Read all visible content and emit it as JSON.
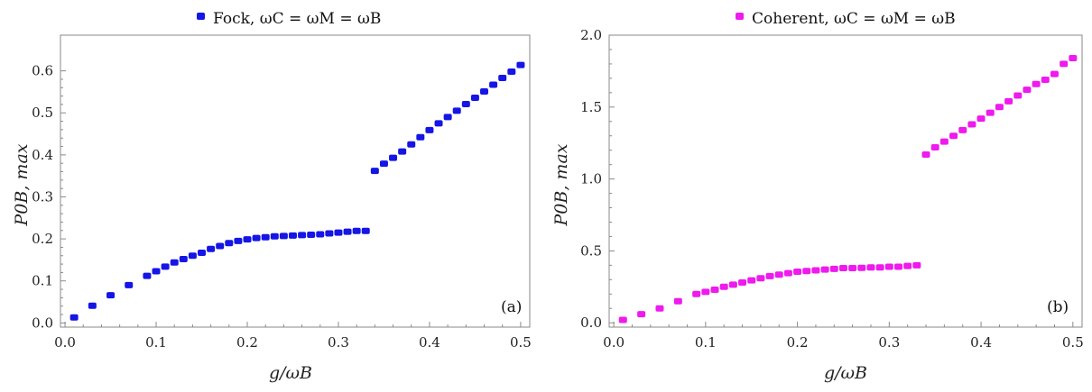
{
  "chart_data": [
    {
      "type": "scatter",
      "panel_label": "(a)",
      "title": "Fock,  ωC = ωM = ωB",
      "xlabel": "g/ωB",
      "ylabel": "P0B, max",
      "xlim": [
        -0.005,
        0.51
      ],
      "ylim": [
        -0.01,
        0.685
      ],
      "xticks": [
        0.0,
        0.1,
        0.2,
        0.3,
        0.4,
        0.5
      ],
      "xtick_labels": [
        "0.0",
        "0.1",
        "0.2",
        "0.3",
        "0.4",
        "0.5"
      ],
      "yticks": [
        0.0,
        0.1,
        0.2,
        0.3,
        0.4,
        0.5,
        0.6
      ],
      "ytick_labels": [
        "0.0",
        "0.1",
        "0.2",
        "0.3",
        "0.4",
        "0.5",
        "0.6"
      ],
      "marker_color": "#1515e6",
      "series": [
        {
          "name": "Fock",
          "x": [
            0.01,
            0.03,
            0.05,
            0.07,
            0.09,
            0.1,
            0.11,
            0.12,
            0.13,
            0.14,
            0.15,
            0.16,
            0.17,
            0.18,
            0.19,
            0.2,
            0.21,
            0.22,
            0.23,
            0.24,
            0.25,
            0.26,
            0.27,
            0.28,
            0.29,
            0.3,
            0.31,
            0.32,
            0.33,
            0.34,
            0.35,
            0.36,
            0.37,
            0.38,
            0.39,
            0.4,
            0.41,
            0.42,
            0.43,
            0.44,
            0.45,
            0.46,
            0.47,
            0.48,
            0.49,
            0.5
          ],
          "y": [
            0.013,
            0.041,
            0.066,
            0.09,
            0.112,
            0.123,
            0.134,
            0.144,
            0.152,
            0.16,
            0.167,
            0.176,
            0.183,
            0.19,
            0.195,
            0.199,
            0.202,
            0.204,
            0.206,
            0.207,
            0.208,
            0.209,
            0.21,
            0.211,
            0.213,
            0.215,
            0.217,
            0.219,
            0.219,
            0.362,
            0.379,
            0.393,
            0.408,
            0.425,
            0.442,
            0.459,
            0.475,
            0.49,
            0.505,
            0.521,
            0.536,
            0.551,
            0.567,
            0.583,
            0.598,
            0.614
          ]
        }
      ]
    },
    {
      "type": "scatter",
      "panel_label": "(b)",
      "title": "Coherent,  ωC = ωM = ωB",
      "xlabel": "g/ωB",
      "ylabel": "P0B, max",
      "xlim": [
        -0.005,
        0.51
      ],
      "ylim": [
        -0.03,
        2.0
      ],
      "xticks": [
        0.0,
        0.1,
        0.2,
        0.3,
        0.4,
        0.5
      ],
      "xtick_labels": [
        "0.0",
        "0.1",
        "0.2",
        "0.3",
        "0.4",
        "0.5"
      ],
      "yticks": [
        0.0,
        0.5,
        1.0,
        1.5,
        2.0
      ],
      "ytick_labels": [
        "0.0",
        "0.5",
        "1.0",
        "1.5",
        "2.0"
      ],
      "marker_color": "#ee1aee",
      "series": [
        {
          "name": "Coherent",
          "x": [
            0.01,
            0.03,
            0.05,
            0.07,
            0.09,
            0.1,
            0.11,
            0.12,
            0.13,
            0.14,
            0.15,
            0.16,
            0.17,
            0.18,
            0.19,
            0.2,
            0.21,
            0.22,
            0.23,
            0.24,
            0.25,
            0.26,
            0.27,
            0.28,
            0.29,
            0.3,
            0.31,
            0.32,
            0.33,
            0.34,
            0.35,
            0.36,
            0.37,
            0.38,
            0.39,
            0.4,
            0.41,
            0.42,
            0.43,
            0.44,
            0.45,
            0.46,
            0.47,
            0.48,
            0.49,
            0.5
          ],
          "y": [
            0.02,
            0.06,
            0.1,
            0.15,
            0.2,
            0.215,
            0.23,
            0.25,
            0.265,
            0.28,
            0.295,
            0.31,
            0.325,
            0.335,
            0.345,
            0.355,
            0.36,
            0.365,
            0.37,
            0.375,
            0.38,
            0.38,
            0.382,
            0.385,
            0.385,
            0.39,
            0.39,
            0.395,
            0.4,
            1.17,
            1.22,
            1.26,
            1.3,
            1.34,
            1.38,
            1.42,
            1.46,
            1.5,
            1.54,
            1.58,
            1.62,
            1.66,
            1.69,
            1.73,
            1.8,
            1.84
          ]
        }
      ]
    }
  ]
}
